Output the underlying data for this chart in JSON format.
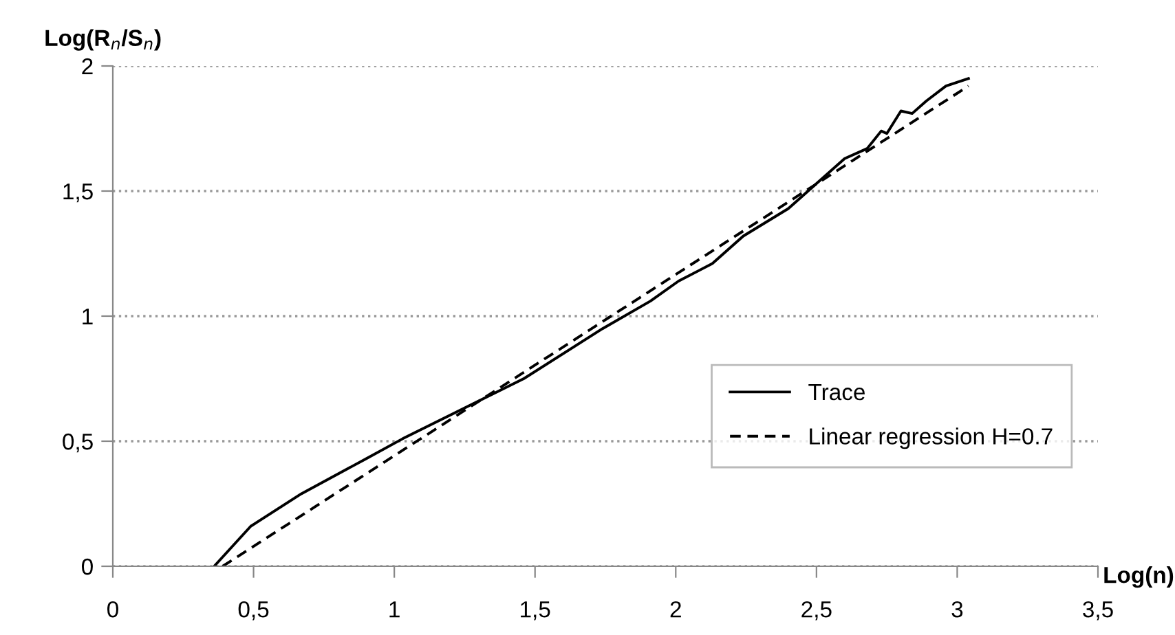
{
  "chart_data": {
    "type": "line",
    "xlabel": "Log(n)",
    "ylabel": "Log(R$_{n}$/S$_{n}$)",
    "xlim": [
      0,
      3.5
    ],
    "ylim": [
      0,
      2
    ],
    "xticks": [
      0,
      {
        "value": 0.5,
        "label": "0,5"
      },
      1,
      {
        "value": 1.5,
        "label": "1,5"
      },
      2,
      {
        "value": 2.5,
        "label": "2,5"
      },
      3,
      {
        "value": 3.5,
        "label": "3,5"
      }
    ],
    "yticks": [
      0,
      {
        "value": 0.5,
        "label": "0,5"
      },
      1,
      {
        "value": 1.5,
        "label": "1,5"
      },
      2
    ],
    "grid": "y",
    "legend": "right",
    "marker": "none",
    "series": [
      {
        "name": "Trace",
        "color": "#000000",
        "line_style": "solid",
        "x": [
          0.36,
          0.49,
          0.67,
          0.9,
          1.03,
          1.28,
          1.46,
          1.74,
          1.91,
          2.01,
          2.13,
          2.24,
          2.4,
          2.49,
          2.6,
          2.68,
          2.73,
          2.75,
          2.8,
          2.84,
          2.89,
          2.96,
          3.04
        ],
        "values": [
          0,
          0.16,
          0.29,
          0.43,
          0.51,
          0.65,
          0.75,
          0.95,
          1.06,
          1.14,
          1.21,
          1.32,
          1.43,
          1.52,
          1.63,
          1.67,
          1.74,
          1.73,
          1.82,
          1.81,
          1.86,
          1.92,
          1.95
        ]
      },
      {
        "name": "Linear regression H=0.7",
        "color": "#000000",
        "line_style": "dashed",
        "x": [
          0.39,
          3.04
        ],
        "values": [
          0,
          1.92
        ]
      }
    ]
  }
}
